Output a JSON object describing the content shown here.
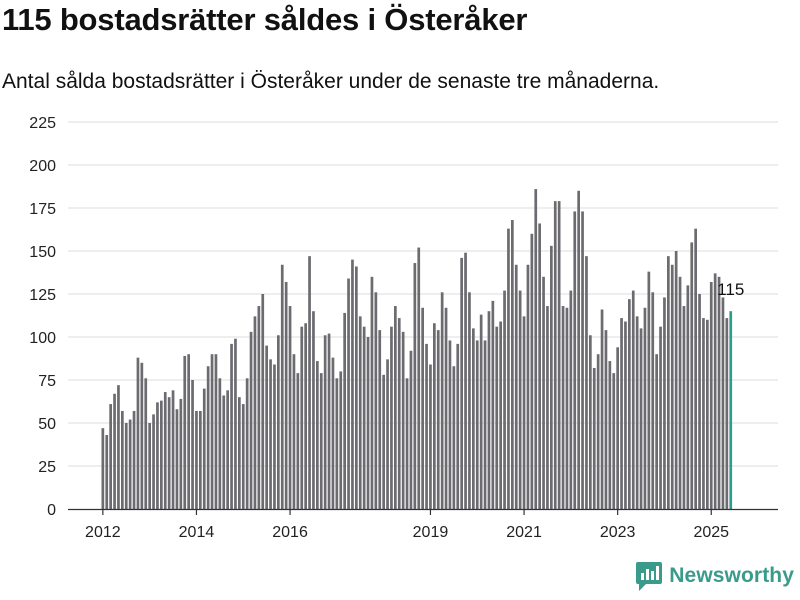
{
  "title": "115 bostadsrätter såldes i Österåker",
  "subtitle": "Antal sålda bostadsrätter i Österåker under de senaste tre månaderna.",
  "brand": {
    "name": "Newsworthy",
    "icon": "newsworthy-logo-icon",
    "color": "#3a9b8a"
  },
  "colors": {
    "bar": "#6b6b70",
    "highlight": "#2a9d8f",
    "grid": "#dcdcdc",
    "axis": "#333333"
  },
  "chart_data": {
    "type": "bar",
    "title": "115 bostadsrätter såldes i Österåker",
    "subtitle": "Antal sålda bostadsrätter i Österåker under de senaste tre månaderna.",
    "xlabel": "",
    "ylabel": "",
    "ylim": [
      0,
      225
    ],
    "yticks": [
      0,
      25,
      50,
      75,
      100,
      125,
      150,
      175,
      200,
      225
    ],
    "grid": true,
    "x_start": "2012-01",
    "x_end": "2025-08",
    "xtick_labels": [
      "2012",
      "2014",
      "2016",
      "2019",
      "2021",
      "2023",
      "2025"
    ],
    "xtick_months": [
      "2012-01",
      "2014-01",
      "2016-01",
      "2019-01",
      "2021-01",
      "2023-01",
      "2025-01"
    ],
    "highlight": {
      "index": "last",
      "label": "115"
    },
    "values": [
      47,
      43,
      61,
      67,
      72,
      57,
      50,
      52,
      57,
      88,
      85,
      76,
      50,
      55,
      62,
      63,
      68,
      65,
      69,
      58,
      64,
      89,
      90,
      75,
      57,
      57,
      70,
      83,
      90,
      90,
      76,
      66,
      69,
      96,
      99,
      65,
      61,
      76,
      103,
      112,
      118,
      125,
      95,
      87,
      84,
      101,
      142,
      132,
      118,
      90,
      79,
      106,
      108,
      147,
      115,
      86,
      79,
      101,
      102,
      88,
      76,
      80,
      114,
      134,
      145,
      141,
      112,
      106,
      100,
      135,
      126,
      104,
      78,
      87,
      106,
      118,
      111,
      103,
      76,
      92,
      143,
      152,
      117,
      96,
      84,
      108,
      104,
      126,
      117,
      98,
      83,
      96,
      146,
      149,
      126,
      105,
      98,
      113,
      98,
      115,
      121,
      106,
      109,
      127,
      163,
      168,
      142,
      127,
      112,
      142,
      160,
      186,
      166,
      135,
      118,
      153,
      179,
      179,
      118,
      117,
      127,
      173,
      185,
      173,
      147,
      101,
      82,
      90,
      116,
      104,
      86,
      79,
      94,
      111,
      109,
      122,
      127,
      112,
      105,
      117,
      138,
      126,
      90,
      106,
      123,
      147,
      142,
      150,
      135,
      118,
      130,
      155,
      163,
      125,
      111,
      110,
      132,
      137,
      135,
      123,
      111,
      115
    ]
  }
}
